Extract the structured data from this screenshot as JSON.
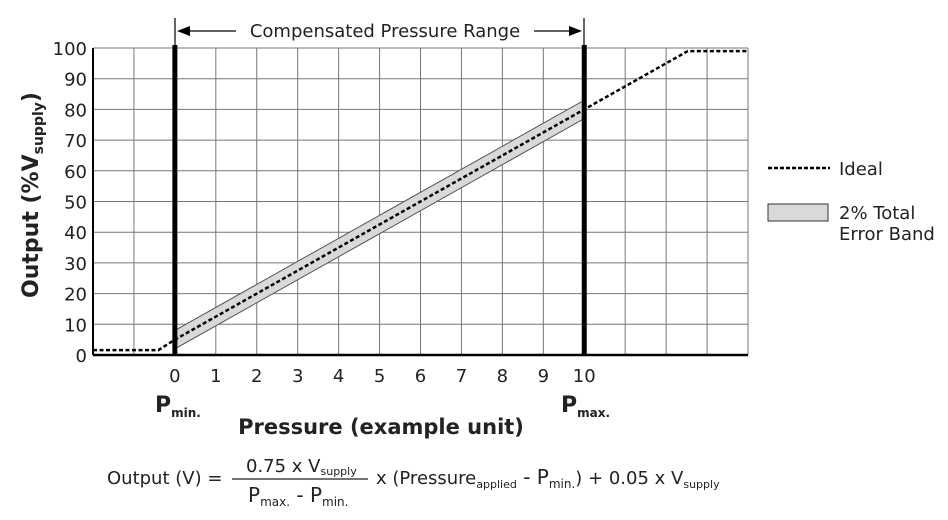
{
  "chart_data": {
    "type": "line",
    "ylabel": "Output (%V",
    "ylabel_sub": "supply",
    "ylabel_end": ")",
    "xlabel": "Pressure (example unit)",
    "xlim": [
      -2,
      14
    ],
    "ylim": [
      0,
      100
    ],
    "grid": true,
    "x_ticks": [
      0,
      1,
      2,
      3,
      4,
      5,
      6,
      7,
      8,
      9,
      10
    ],
    "y_ticks": [
      0,
      10,
      20,
      30,
      40,
      50,
      60,
      70,
      80,
      90,
      100
    ],
    "pmin": {
      "x": 0,
      "label": "P",
      "sub": "min."
    },
    "pmax": {
      "x": 10,
      "label": "P",
      "sub": "max."
    },
    "range_label": "Compensated Pressure Range",
    "series": [
      {
        "name": "Ideal",
        "style": "dotted",
        "color": "#000000",
        "x": [
          -2,
          -0.4,
          0,
          10,
          12.53,
          14
        ],
        "y": [
          1.6,
          1.6,
          5,
          80,
          99,
          99
        ]
      },
      {
        "name": "2% Total Error Band",
        "style": "band",
        "color": "#d9d9d9",
        "x": [
          0,
          10
        ],
        "y": [
          5,
          80
        ],
        "half_width": 3
      }
    ],
    "legend": {
      "placement": "right",
      "ideal": "Ideal",
      "band_line1": "2% Total",
      "band_line2": "Error Band"
    }
  },
  "formula": {
    "lhs": "Output (V) =",
    "num": "0.75 x V",
    "num_sub": "supply",
    "den_a": "P",
    "den_a_sub": "max.",
    "den_mid": " - P",
    "den_b_sub": "min.",
    "mid": "x (Pressure",
    "mid_sub": "applied",
    "mid2": " - P",
    "mid2_sub": "min.",
    "mid3": ") + 0.05 x V",
    "end_sub": "supply"
  }
}
